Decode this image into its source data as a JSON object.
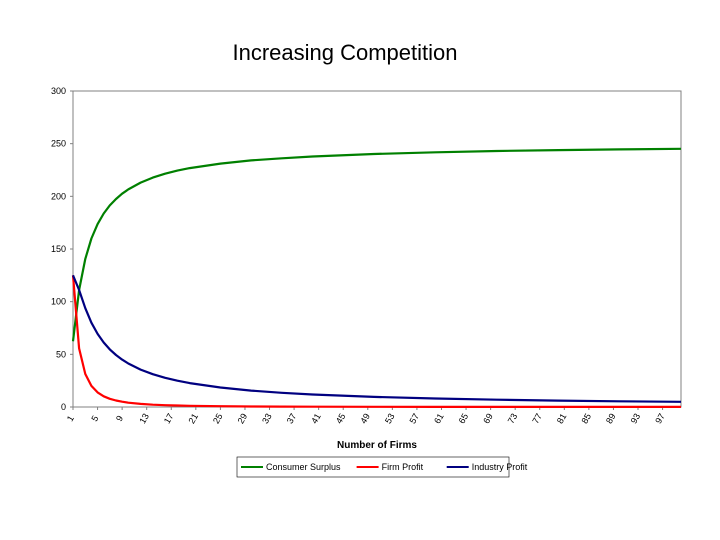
{
  "chart_data": {
    "type": "line",
    "title": "Increasing Competition",
    "xlabel": "Number of Firms",
    "ylabel": "",
    "ylim": [
      0,
      300
    ],
    "yticks": [
      0,
      50,
      100,
      150,
      200,
      250,
      300
    ],
    "xlim": [
      1,
      100
    ],
    "xticks": [
      1,
      5,
      9,
      13,
      17,
      21,
      25,
      29,
      33,
      37,
      41,
      45,
      49,
      53,
      57,
      61,
      65,
      69,
      73,
      77,
      81,
      85,
      89,
      93,
      97
    ],
    "grid": false,
    "legend": "bottom",
    "x": [
      1,
      2,
      3,
      4,
      5,
      6,
      7,
      8,
      9,
      10,
      12,
      14,
      16,
      18,
      20,
      25,
      30,
      35,
      40,
      50,
      60,
      70,
      80,
      90,
      100
    ],
    "series": [
      {
        "name": "Consumer Surplus",
        "color": "#008000",
        "values": [
          62.5,
          111.1,
          140.6,
          160.0,
          173.6,
          183.7,
          191.4,
          197.5,
          202.5,
          206.6,
          213.0,
          217.8,
          221.5,
          224.4,
          226.8,
          231.1,
          234.1,
          236.1,
          237.8,
          240.2,
          241.8,
          243.0,
          243.9,
          244.6,
          245.1
        ]
      },
      {
        "name": "Firm Profit",
        "color": "#ff0000",
        "values": [
          125.0,
          55.6,
          31.3,
          20.0,
          13.9,
          10.2,
          7.8,
          6.2,
          5.0,
          4.1,
          2.96,
          2.22,
          1.73,
          1.39,
          1.13,
          0.74,
          0.52,
          0.39,
          0.3,
          0.19,
          0.13,
          0.1,
          0.08,
          0.06,
          0.05
        ]
      },
      {
        "name": "Industry Profit",
        "color": "#000080",
        "values": [
          125.0,
          111.1,
          93.8,
          80.0,
          69.4,
          61.2,
          54.7,
          49.4,
          45.0,
          41.3,
          35.5,
          31.1,
          27.7,
          25.0,
          22.7,
          18.5,
          15.6,
          13.5,
          11.9,
          9.6,
          8.1,
          6.9,
          6.1,
          5.4,
          4.9
        ]
      }
    ]
  }
}
